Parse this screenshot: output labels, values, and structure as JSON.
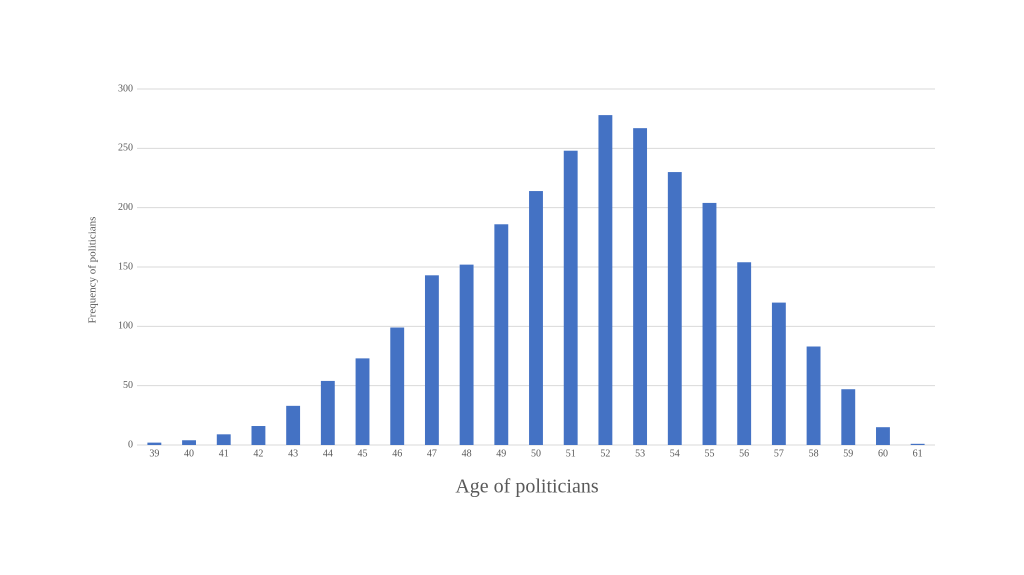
{
  "chart_data": {
    "type": "bar",
    "x_label": "Age of politicians",
    "y_label": "Frequency of politicians",
    "categories": [
      "39",
      "40",
      "41",
      "42",
      "43",
      "44",
      "45",
      "46",
      "47",
      "48",
      "49",
      "50",
      "51",
      "52",
      "53",
      "54",
      "55",
      "56",
      "57",
      "58",
      "59",
      "60",
      "61"
    ],
    "values": [
      2,
      4,
      9,
      16,
      33,
      54,
      73,
      99,
      143,
      152,
      186,
      214,
      248,
      278,
      267,
      230,
      204,
      154,
      120,
      83,
      47,
      15,
      1
    ],
    "color": "#4472c4",
    "ylim": [
      0,
      300
    ],
    "yticks": [
      0,
      50,
      100,
      150,
      200,
      250,
      300
    ],
    "grid": true
  }
}
